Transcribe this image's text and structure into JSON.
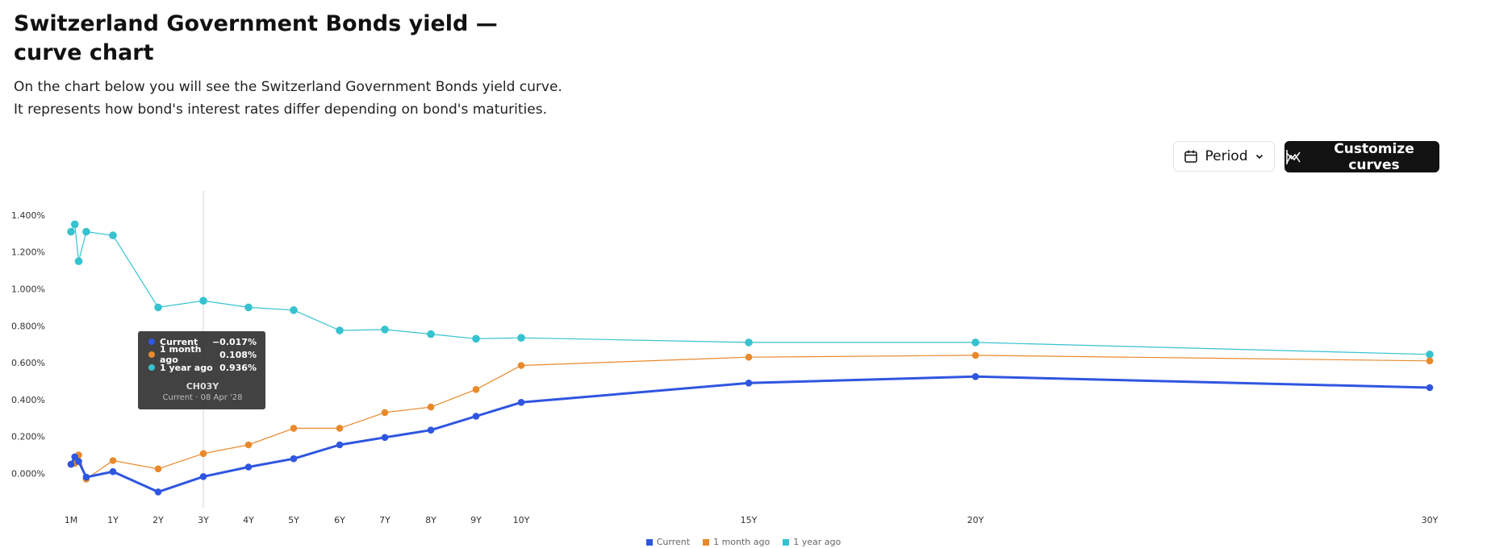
{
  "header": {
    "title": "Switzerland Government Bonds yield — curve chart",
    "description": "On the chart below you will see the Switzerland Government Bonds yield curve. It represents how bond's interest rates differ depending on bond's maturities."
  },
  "toolbar": {
    "period_label": "Period",
    "period_icon": "calendar-icon",
    "customize_label": "Customize curves",
    "customize_icon": "curves-icon"
  },
  "tooltip": {
    "rows": [
      {
        "name": "Current",
        "value": "−0.017%",
        "color": "#2f56e0"
      },
      {
        "name": "1 month ago",
        "value": "0.108%",
        "color": "#e8892c"
      },
      {
        "name": "1 year ago",
        "value": "0.936%",
        "color": "#36c2cf"
      }
    ],
    "symbol": "CH03Y",
    "subtitle": "Current · 08 Apr '28"
  },
  "chart_data": {
    "type": "line",
    "x_unit": "maturity in months",
    "ylim": [
      -0.2,
      1.5
    ],
    "xlim": [
      1,
      360
    ],
    "y_ticks": [
      0.0,
      0.2,
      0.4,
      0.6,
      0.8,
      1.0,
      1.2,
      1.4
    ],
    "y_tick_labels": [
      "0.000%",
      "0.200%",
      "0.400%",
      "0.600%",
      "0.800%",
      "1.000%",
      "1.200%",
      "1.400%"
    ],
    "x_ticks": [
      1,
      12,
      24,
      36,
      48,
      60,
      72,
      84,
      96,
      108,
      120,
      180,
      240,
      360
    ],
    "x_tick_labels": [
      "1M",
      "1Y",
      "2Y",
      "3Y",
      "4Y",
      "5Y",
      "6Y",
      "7Y",
      "8Y",
      "9Y",
      "10Y",
      "15Y",
      "20Y",
      "30Y"
    ],
    "hover_x": 36,
    "grid": false,
    "legend_position": "bottom-center",
    "series": [
      {
        "name": "Current",
        "color": "#2f56e0",
        "x": [
          1,
          2,
          3,
          5,
          12,
          24,
          36,
          48,
          60,
          72,
          84,
          96,
          108,
          120,
          180,
          240,
          360
        ],
        "y": [
          0.05,
          0.09,
          0.065,
          -0.02,
          0.01,
          -0.1,
          -0.017,
          0.035,
          0.08,
          0.155,
          0.195,
          0.235,
          0.31,
          0.385,
          0.49,
          0.525,
          0.465
        ]
      },
      {
        "name": "1 month ago",
        "color": "#e8892c",
        "x": [
          1,
          2,
          3,
          5,
          12,
          24,
          36,
          48,
          60,
          72,
          84,
          96,
          108,
          120,
          180,
          240,
          360
        ],
        "y": [
          0.05,
          0.055,
          0.1,
          -0.03,
          0.07,
          0.025,
          0.108,
          0.155,
          0.245,
          0.245,
          0.33,
          0.36,
          0.455,
          0.585,
          0.63,
          0.64,
          0.61
        ]
      },
      {
        "name": "1 year ago",
        "color": "#36c2cf",
        "x": [
          1,
          2,
          3,
          5,
          12,
          24,
          36,
          48,
          60,
          72,
          84,
          96,
          108,
          120,
          180,
          240,
          360
        ],
        "y": [
          1.31,
          1.35,
          1.15,
          1.31,
          1.29,
          0.9,
          0.936,
          0.9,
          0.885,
          0.775,
          0.78,
          0.755,
          0.73,
          0.735,
          0.71,
          0.71,
          0.645
        ]
      }
    ]
  }
}
